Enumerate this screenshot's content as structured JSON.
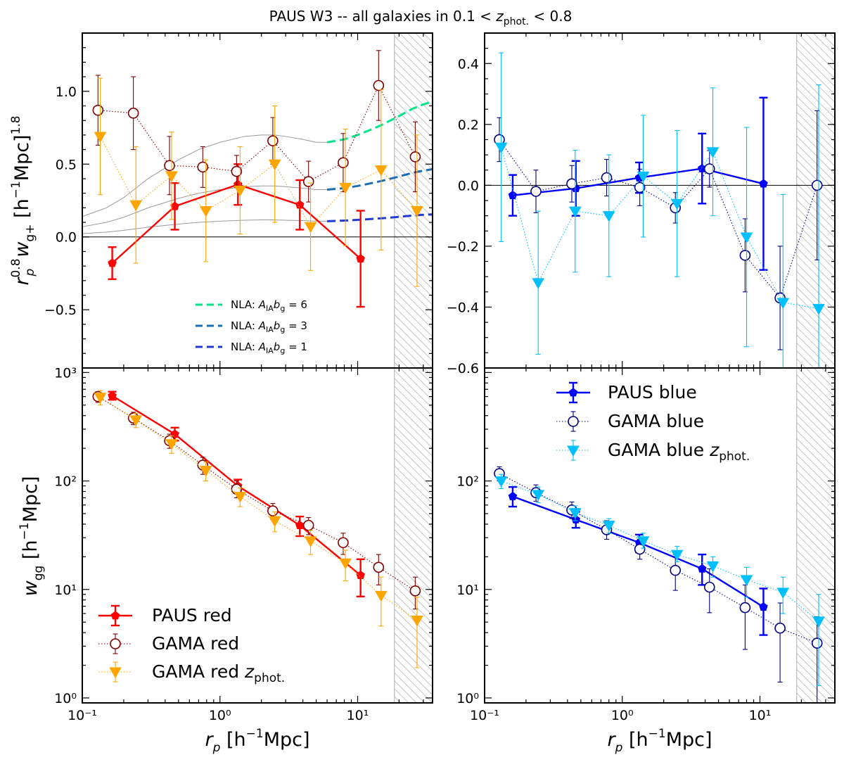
{
  "title": "PAUS W3 -- all galaxies in 0.1 < z_phot. < 0.8",
  "title_parts": {
    "lead": "PAUS W3 -- all galaxies in 0.1 < ",
    "z": "z",
    "sub": "phot.",
    "tail": " < 0.8"
  },
  "labels": {
    "xlabel": "r_p [h^-1 Mpc]",
    "ylabel_top": "r_p^0.8 w_g+ [h^-1 Mpc]^1.8",
    "ylabel_bottom": "w_gg [h^-1 Mpc]",
    "x_r": "r",
    "x_p": "p",
    "x_bracket": " [h",
    "x_minus1": "−1",
    "x_mpc": "Mpc]",
    "yt_r": "r",
    "yt_08": "0.8",
    "yt_p": "p",
    "yt_w": "w",
    "yt_gplus": "g+",
    "yt_bracket": " [h",
    "yt_minus1": "−1",
    "yt_mpc": "Mpc]",
    "yt_18": "1.8",
    "yb_w": "w",
    "yb_gg": "gg",
    "yb_bracket": " [h",
    "yb_minus1": "−1",
    "yb_mpc": "Mpc]"
  },
  "legend_red": {
    "paus": "PAUS red",
    "gama": "GAMA red",
    "gama_z_lead": "GAMA red ",
    "gama_z_z": "z",
    "gama_z_sub": "phot."
  },
  "legend_blue": {
    "paus": "PAUS blue",
    "gama": "GAMA blue",
    "gama_z_lead": "GAMA blue ",
    "gama_z_z": "z",
    "gama_z_sub": "phot."
  },
  "legend_nla": [
    {
      "lead": "NLA: ",
      "a": "A",
      "a_sub": "IA",
      "b": "b",
      "b_sub": "g",
      "tail": " = 6"
    },
    {
      "lead": "NLA: ",
      "a": "A",
      "a_sub": "IA",
      "b": "b",
      "b_sub": "g",
      "tail": " = 3"
    },
    {
      "lead": "NLA: ",
      "a": "A",
      "a_sub": "IA",
      "b": "b",
      "b_sub": "g",
      "tail": " = 1"
    }
  ],
  "colors": {
    "paus_red": "#ff0000",
    "gama_red": "#800000",
    "gama_red_zphot": "#ffa500",
    "paus_blue": "#0000ff",
    "gama_blue": "#000080",
    "gama_blue_zphot": "#00bfff",
    "nla6": "#00e58a",
    "nla3": "#1a6db3",
    "nla1": "#1e3ad8",
    "model_gray": "#999999",
    "hatch": "#aaaaaa"
  },
  "chart_data": [
    {
      "id": "top-left",
      "type": "scatter",
      "title": "",
      "xscale": "log",
      "xlim": [
        0.1,
        35
      ],
      "ylim": [
        -0.9,
        1.4
      ],
      "xticks": [
        0.1,
        1,
        10
      ],
      "xtick_labels": [
        "",
        "",
        ""
      ],
      "yticks": [
        -0.5,
        0,
        0.5,
        1
      ],
      "ytick_labels": [
        "−0.5",
        "0.0",
        "0.5",
        "1.0"
      ],
      "hline": 0,
      "excluded_region_min": 18.5,
      "series": [
        {
          "name": "PAUS red",
          "key": "paus_red",
          "marker": "pentagon",
          "filled": true,
          "line": "solid",
          "x": [
            0.165,
            0.47,
            1.35,
            3.8,
            10.5
          ],
          "y": [
            -0.18,
            0.21,
            0.36,
            0.22,
            -0.15
          ],
          "err": [
            0.11,
            0.16,
            0.14,
            0.17,
            0.33
          ]
        },
        {
          "name": "GAMA red",
          "key": "gama_red",
          "marker": "circle",
          "filled": false,
          "line": "dotted",
          "x": [
            0.13,
            0.235,
            0.43,
            0.75,
            1.32,
            2.42,
            4.4,
            7.85,
            14.2,
            26.2
          ],
          "y": [
            0.87,
            0.85,
            0.49,
            0.48,
            0.45,
            0.66,
            0.38,
            0.51,
            1.04,
            0.55
          ],
          "err": [
            0.24,
            0.25,
            0.2,
            0.14,
            0.11,
            0.16,
            0.14,
            0.2,
            0.24,
            0.24
          ]
        },
        {
          "name": "GAMA red z_phot.",
          "key": "gama_red_zphot",
          "marker": "triangle-down",
          "filled": true,
          "line": "dotted",
          "x": [
            0.135,
            0.245,
            0.445,
            0.79,
            1.4,
            2.5,
            4.55,
            8.15,
            14.8,
            27.0
          ],
          "y": [
            0.69,
            0.22,
            0.42,
            0.18,
            0.32,
            0.5,
            0.07,
            0.34,
            0.46,
            0.18
          ],
          "err": [
            0.4,
            0.4,
            0.3,
            0.35,
            0.3,
            0.4,
            0.3,
            0.4,
            0.55,
            0.52
          ]
        }
      ],
      "model_curves": [
        {
          "name": "NLA: A_IA b_g = 6",
          "key": "nla6",
          "x": [
            0.1,
            0.15,
            0.2,
            0.3,
            0.5,
            0.7,
            1.0,
            1.5,
            2.0,
            2.5,
            3.0,
            4.0,
            5.0,
            6.0,
            8.0,
            10.0,
            12.0,
            15.0,
            20.0,
            25.0,
            30.0,
            35.0
          ],
          "y": [
            0.14,
            0.2,
            0.27,
            0.4,
            0.53,
            0.6,
            0.65,
            0.69,
            0.7,
            0.7,
            0.69,
            0.67,
            0.65,
            0.65,
            0.67,
            0.7,
            0.73,
            0.77,
            0.83,
            0.88,
            0.91,
            0.93
          ]
        },
        {
          "name": "NLA: A_IA b_g = 3",
          "key": "nla3",
          "x": [
            0.1,
            0.15,
            0.2,
            0.3,
            0.5,
            0.7,
            1.0,
            1.5,
            2.0,
            2.5,
            3.0,
            4.0,
            5.0,
            6.0,
            8.0,
            10.0,
            12.0,
            15.0,
            20.0,
            25.0,
            30.0,
            35.0
          ],
          "y": [
            0.07,
            0.1,
            0.135,
            0.2,
            0.265,
            0.3,
            0.325,
            0.345,
            0.35,
            0.35,
            0.345,
            0.335,
            0.325,
            0.325,
            0.335,
            0.35,
            0.365,
            0.385,
            0.415,
            0.44,
            0.455,
            0.465
          ]
        },
        {
          "name": "NLA: A_IA b_g = 1",
          "key": "nla1",
          "x": [
            0.1,
            0.15,
            0.2,
            0.3,
            0.5,
            0.7,
            1.0,
            1.5,
            2.0,
            2.5,
            3.0,
            4.0,
            5.0,
            6.0,
            8.0,
            10.0,
            12.0,
            15.0,
            20.0,
            25.0,
            30.0,
            35.0
          ],
          "y": [
            0.023,
            0.033,
            0.045,
            0.067,
            0.088,
            0.1,
            0.108,
            0.115,
            0.117,
            0.117,
            0.115,
            0.112,
            0.108,
            0.108,
            0.112,
            0.117,
            0.122,
            0.128,
            0.138,
            0.147,
            0.152,
            0.155
          ]
        }
      ],
      "model_dashed_from": 6
    },
    {
      "id": "top-right",
      "type": "scatter",
      "title": "",
      "xscale": "log",
      "xlim": [
        0.1,
        35
      ],
      "ylim": [
        -0.6,
        0.5
      ],
      "xticks": [
        0.1,
        1,
        10
      ],
      "xtick_labels": [
        "",
        "",
        ""
      ],
      "yticks": [
        -0.6,
        -0.4,
        -0.2,
        0,
        0.2,
        0.4
      ],
      "ytick_labels": [
        "−0.6",
        "−0.4",
        "−0.2",
        "0.0",
        "0.2",
        "0.4"
      ],
      "hline": 0,
      "excluded_region_min": 18.5,
      "series": [
        {
          "name": "PAUS blue",
          "key": "paus_blue",
          "marker": "pentagon",
          "filled": true,
          "line": "solid",
          "x": [
            0.16,
            0.46,
            1.33,
            3.8,
            10.6
          ],
          "y": [
            -0.033,
            -0.01,
            0.025,
            0.055,
            0.005
          ],
          "err": [
            0.067,
            0.09,
            0.05,
            0.115,
            0.283
          ]
        },
        {
          "name": "GAMA blue",
          "key": "gama_blue",
          "marker": "circle",
          "filled": false,
          "line": "dotted",
          "x": [
            0.128,
            0.236,
            0.43,
            0.77,
            1.34,
            2.43,
            4.3,
            7.8,
            14.0,
            26.0
          ],
          "y": [
            0.15,
            -0.02,
            0.005,
            0.025,
            -0.007,
            -0.074,
            0.054,
            -0.23,
            -0.37,
            0.0
          ],
          "err": [
            0.072,
            0.07,
            0.06,
            0.06,
            0.06,
            0.05,
            0.06,
            0.12,
            0.17,
            0.245
          ]
        },
        {
          "name": "GAMA blue z_phot.",
          "key": "gama_blue_zphot",
          "marker": "triangle-down",
          "filled": true,
          "line": "dotted",
          "x": [
            0.132,
            0.245,
            0.455,
            0.8,
            1.42,
            2.5,
            4.55,
            8.0,
            14.7,
            26.7
          ],
          "y": [
            0.125,
            -0.32,
            -0.085,
            -0.1,
            0.03,
            -0.06,
            0.11,
            -0.17,
            -0.385,
            -0.405
          ],
          "err": [
            0.31,
            0.235,
            0.2,
            0.2,
            0.2,
            0.24,
            0.21,
            0.36,
            0.355,
            0.735
          ]
        }
      ]
    },
    {
      "id": "bottom-left",
      "type": "scatter",
      "title": "",
      "xscale": "log",
      "yscale": "log",
      "xlim": [
        0.1,
        35
      ],
      "ylim": [
        0.9,
        1100
      ],
      "xticks": [
        0.1,
        1,
        10
      ],
      "xtick_labels": [
        "10⁻¹",
        "10⁰",
        "10¹"
      ],
      "yticks": [
        1,
        10,
        100,
        1000
      ],
      "ytick_labels": [
        "10⁰",
        "10¹",
        "10²",
        "10³"
      ],
      "excluded_region_min": 18.5,
      "series": [
        {
          "name": "PAUS red",
          "key": "paus_red",
          "marker": "pentagon",
          "filled": true,
          "line": "solid",
          "x": [
            0.165,
            0.47,
            1.35,
            3.8,
            10.5
          ],
          "y": [
            610,
            270,
            90,
            39,
            13.5
          ],
          "ylo": [
            560,
            235,
            78,
            31,
            8.6
          ],
          "yhi": [
            665,
            310,
            103,
            47,
            19
          ]
        },
        {
          "name": "GAMA red",
          "key": "gama_red",
          "marker": "circle",
          "filled": false,
          "line": "dotted",
          "x": [
            0.13,
            0.235,
            0.43,
            0.75,
            1.32,
            2.42,
            4.4,
            7.85,
            14.2,
            26.2
          ],
          "y": [
            600,
            380,
            235,
            140,
            84,
            53,
            39,
            27,
            16,
            9.7
          ],
          "ylo": [
            530,
            330,
            200,
            115,
            70,
            44,
            32,
            21,
            11,
            6.6
          ],
          "yhi": [
            660,
            430,
            270,
            165,
            100,
            62,
            46,
            33,
            21,
            13
          ]
        },
        {
          "name": "GAMA red z_phot.",
          "key": "gama_red_zphot",
          "marker": "triangle-down",
          "filled": true,
          "line": "dotted",
          "x": [
            0.135,
            0.245,
            0.445,
            0.79,
            1.4,
            2.5,
            4.55,
            8.15,
            14.8,
            27.0
          ],
          "y": [
            590,
            365,
            220,
            125,
            72,
            43,
            28,
            17.5,
            8.8,
            5.2
          ],
          "ylo": [
            500,
            310,
            180,
            100,
            58,
            34,
            21,
            12,
            4.6,
            1.9
          ],
          "yhi": [
            680,
            420,
            260,
            150,
            86,
            52,
            35,
            23,
            13,
            8.5
          ]
        }
      ],
      "legend": "lower left"
    },
    {
      "id": "bottom-right",
      "type": "scatter",
      "title": "",
      "xscale": "log",
      "yscale": "log",
      "xlim": [
        0.1,
        35
      ],
      "ylim": [
        0.9,
        1100
      ],
      "xticks": [
        0.1,
        1,
        10
      ],
      "xtick_labels": [
        "10⁻¹",
        "10⁰",
        "10¹"
      ],
      "yticks": [
        1,
        10,
        100,
        1000
      ],
      "ytick_labels": [
        "10⁰",
        "10¹",
        "10²",
        ""
      ],
      "excluded_region_min": 18.5,
      "series": [
        {
          "name": "PAUS blue",
          "key": "paus_blue",
          "marker": "pentagon",
          "filled": true,
          "line": "solid",
          "x": [
            0.16,
            0.46,
            1.33,
            3.8,
            10.6
          ],
          "y": [
            72,
            44,
            27,
            15.5,
            6.9
          ],
          "ylo": [
            58,
            37,
            22,
            11,
            3.8
          ],
          "yhi": [
            88,
            52,
            32,
            21,
            10.2
          ]
        },
        {
          "name": "GAMA blue",
          "key": "gama_blue",
          "marker": "circle",
          "filled": false,
          "line": "dotted",
          "x": [
            0.128,
            0.236,
            0.43,
            0.77,
            1.34,
            2.43,
            4.3,
            7.8,
            14.0,
            26.0
          ],
          "y": [
            117,
            78,
            54,
            35.5,
            23.5,
            15,
            10.5,
            6.8,
            4.4,
            3.2
          ],
          "ylo": [
            100,
            65,
            45,
            29,
            19,
            9.8,
            6.1,
            2.8,
            1.4,
            0.9
          ],
          "yhi": [
            135,
            92,
            64,
            43,
            29,
            21,
            15.5,
            11,
            7.5,
            5.6
          ]
        },
        {
          "name": "GAMA blue z_phot.",
          "key": "gama_blue_zphot",
          "marker": "triangle-down",
          "filled": true,
          "line": "dotted",
          "x": [
            0.132,
            0.245,
            0.455,
            0.8,
            1.42,
            2.5,
            4.55,
            8.0,
            14.7,
            26.7
          ],
          "y": [
            100,
            75,
            51,
            39,
            28,
            21,
            16.5,
            12.3,
            9.4,
            5.1
          ],
          "ylo": [
            85,
            63,
            43,
            33,
            24,
            18,
            13,
            8.5,
            6.0,
            1.3
          ],
          "yhi": [
            115,
            88,
            59,
            45,
            33,
            25,
            20,
            16,
            13,
            9
          ]
        }
      ],
      "legend": "upper right"
    }
  ]
}
